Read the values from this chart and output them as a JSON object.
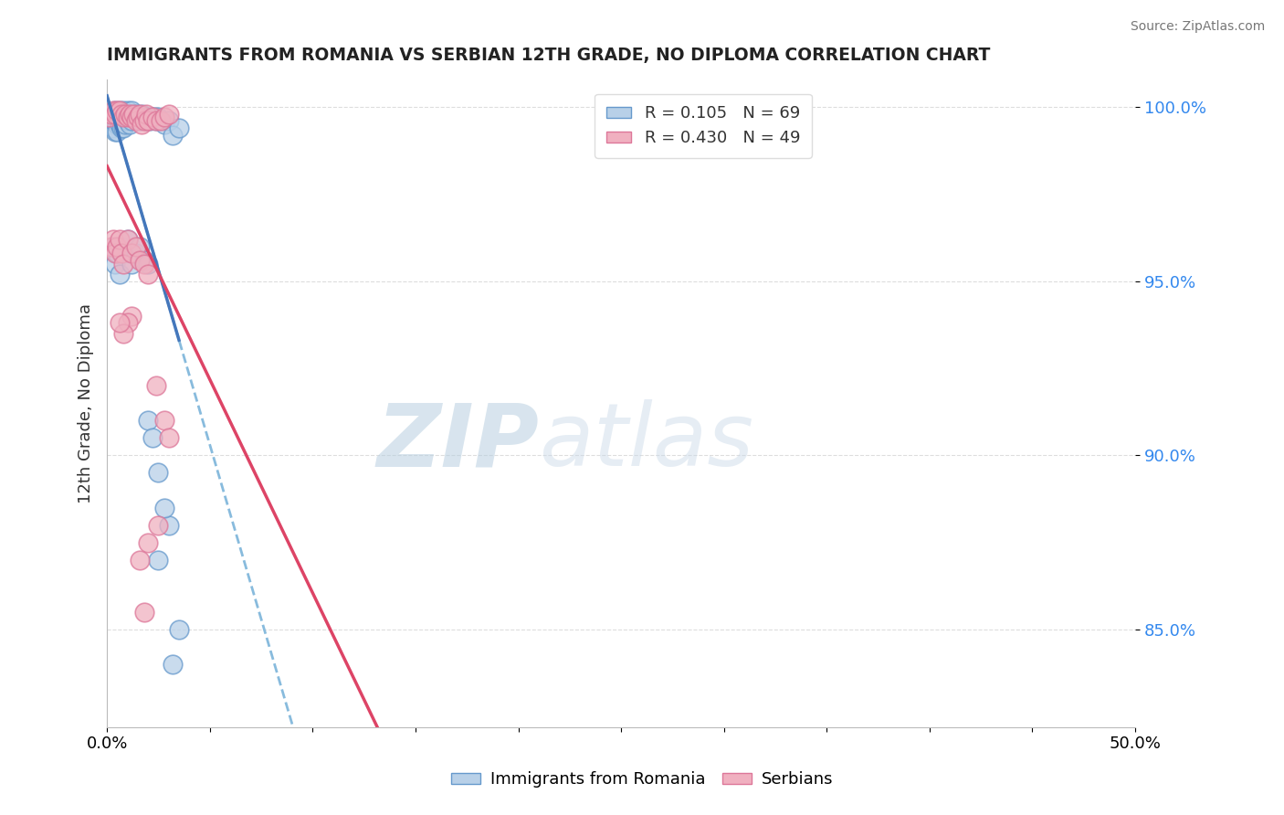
{
  "title": "IMMIGRANTS FROM ROMANIA VS SERBIAN 12TH GRADE, NO DIPLOMA CORRELATION CHART",
  "source": "Source: ZipAtlas.com",
  "ylabel": "12th Grade, No Diploma",
  "xlim": [
    0.0,
    0.5
  ],
  "ylim": [
    0.822,
    1.008
  ],
  "ytick_labels": [
    "85.0%",
    "90.0%",
    "95.0%",
    "100.0%"
  ],
  "ytick_vals": [
    0.85,
    0.9,
    0.95,
    1.0
  ],
  "legend_r1_val": "0.105",
  "legend_n1_val": "69",
  "legend_r2_val": "0.430",
  "legend_n2_val": "49",
  "blue_scatter_face": "#b8d0e8",
  "blue_scatter_edge": "#6699cc",
  "pink_scatter_face": "#f0b0c0",
  "pink_scatter_edge": "#dd7799",
  "blue_line_color": "#4477bb",
  "pink_line_color": "#dd4466",
  "dashed_line_color": "#88bbdd",
  "watermark_zip": "ZIP",
  "watermark_atlas": "atlas",
  "romania_x": [
    0.001,
    0.002,
    0.002,
    0.003,
    0.003,
    0.003,
    0.004,
    0.004,
    0.004,
    0.004,
    0.005,
    0.005,
    0.005,
    0.005,
    0.006,
    0.006,
    0.006,
    0.007,
    0.007,
    0.007,
    0.008,
    0.008,
    0.008,
    0.009,
    0.009,
    0.01,
    0.01,
    0.011,
    0.011,
    0.012,
    0.012,
    0.013,
    0.014,
    0.015,
    0.016,
    0.017,
    0.018,
    0.019,
    0.02,
    0.021,
    0.022,
    0.023,
    0.024,
    0.025,
    0.026,
    0.028,
    0.03,
    0.032,
    0.035,
    0.003,
    0.004,
    0.005,
    0.006,
    0.007,
    0.008,
    0.01,
    0.012,
    0.014,
    0.016,
    0.018,
    0.02,
    0.025,
    0.03,
    0.035,
    0.02,
    0.022,
    0.025,
    0.028,
    0.032
  ],
  "romania_y": [
    0.998,
    0.997,
    0.995,
    0.998,
    0.996,
    0.994,
    0.999,
    0.997,
    0.996,
    0.993,
    0.998,
    0.997,
    0.995,
    0.993,
    0.999,
    0.997,
    0.995,
    0.998,
    0.996,
    0.994,
    0.999,
    0.997,
    0.994,
    0.998,
    0.995,
    0.999,
    0.996,
    0.998,
    0.995,
    0.999,
    0.996,
    0.997,
    0.998,
    0.997,
    0.996,
    0.998,
    0.997,
    0.996,
    0.997,
    0.996,
    0.997,
    0.997,
    0.996,
    0.997,
    0.996,
    0.995,
    0.996,
    0.992,
    0.994,
    0.96,
    0.955,
    0.958,
    0.952,
    0.96,
    0.958,
    0.962,
    0.955,
    0.958,
    0.96,
    0.956,
    0.955,
    0.87,
    0.88,
    0.85,
    0.91,
    0.905,
    0.895,
    0.885,
    0.84
  ],
  "serbian_x": [
    0.001,
    0.002,
    0.003,
    0.004,
    0.005,
    0.006,
    0.007,
    0.008,
    0.009,
    0.01,
    0.011,
    0.012,
    0.013,
    0.014,
    0.015,
    0.016,
    0.017,
    0.018,
    0.019,
    0.02,
    0.022,
    0.024,
    0.026,
    0.028,
    0.03,
    0.002,
    0.003,
    0.004,
    0.005,
    0.006,
    0.007,
    0.008,
    0.01,
    0.012,
    0.014,
    0.016,
    0.018,
    0.02,
    0.024,
    0.028,
    0.03,
    0.016,
    0.018,
    0.02,
    0.025,
    0.012,
    0.01,
    0.008,
    0.006
  ],
  "serbian_y": [
    0.997,
    0.998,
    0.999,
    0.998,
    0.999,
    0.999,
    0.998,
    0.997,
    0.998,
    0.997,
    0.998,
    0.997,
    0.998,
    0.996,
    0.997,
    0.998,
    0.995,
    0.996,
    0.998,
    0.996,
    0.997,
    0.996,
    0.996,
    0.997,
    0.998,
    0.96,
    0.962,
    0.958,
    0.96,
    0.962,
    0.958,
    0.955,
    0.962,
    0.958,
    0.96,
    0.956,
    0.955,
    0.952,
    0.92,
    0.91,
    0.905,
    0.87,
    0.855,
    0.875,
    0.88,
    0.94,
    0.938,
    0.935,
    0.938
  ]
}
